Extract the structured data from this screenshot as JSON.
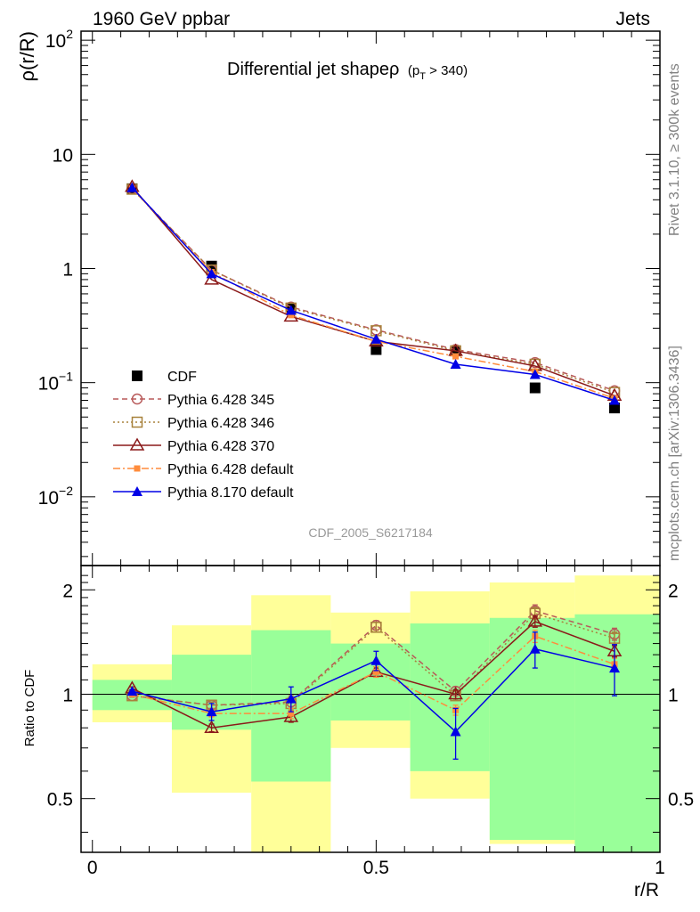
{
  "header": {
    "left_label": "1960 GeV ppbar",
    "right_label": "Jets",
    "title_main": "Differential jet shapeρ",
    "title_sub": "(p",
    "title_sub_index": "T",
    "title_sub_tail": " > 340)",
    "side_label_top": "Rivet 3.1.10, ≥ 300k events",
    "side_label_bottom": "mcplots.cern.ch [arXiv:1306.3436]",
    "watermark": "CDF_2005_S6217184"
  },
  "chart_data": [
    {
      "type": "line",
      "yscale": "log",
      "ylabel": "ρ(r/R)",
      "xlim": [
        -0.02,
        1.0
      ],
      "ylim": [
        0.0025,
        120
      ],
      "y_ticks": [
        {
          "value": 0.01,
          "base": "10",
          "exp": "−2"
        },
        {
          "value": 0.1,
          "base": "10",
          "exp": "−1"
        },
        {
          "value": 1,
          "base": "1",
          "exp": ""
        },
        {
          "value": 10,
          "base": "10",
          "exp": ""
        },
        {
          "value": 100,
          "base": "10",
          "exp": "2"
        }
      ],
      "x": [
        0.07,
        0.21,
        0.35,
        0.5,
        0.64,
        0.78,
        0.92
      ],
      "series": [
        {
          "name": "CDF",
          "color": "#000000",
          "marker": "filled-square",
          "line": "none",
          "values": [
            5.0,
            1.05,
            0.45,
            0.195,
            0.19,
            0.09,
            0.06
          ]
        },
        {
          "name": "Pythia 6.428 345",
          "color": "#b85a5a",
          "marker": "open-circle",
          "line": "dashed",
          "values": [
            5.0,
            0.97,
            0.46,
            0.29,
            0.195,
            0.15,
            0.085
          ]
        },
        {
          "name": "Pythia 6.428 346",
          "color": "#a8823c",
          "marker": "open-square",
          "line": "dotted",
          "values": [
            4.95,
            0.97,
            0.45,
            0.285,
            0.19,
            0.145,
            0.082
          ]
        },
        {
          "name": "Pythia 6.428 370",
          "color": "#8b1a1a",
          "marker": "open-triangle",
          "line": "solid",
          "values": [
            5.2,
            0.8,
            0.38,
            0.23,
            0.19,
            0.14,
            0.077
          ]
        },
        {
          "name": "Pythia 6.428 default",
          "color": "#ff8c3c",
          "marker": "filled-small-square",
          "line": "dashdot",
          "values": [
            5.0,
            0.93,
            0.39,
            0.23,
            0.17,
            0.125,
            0.073
          ]
        },
        {
          "name": "Pythia 8.170 default",
          "color": "#0000e6",
          "marker": "filled-triangle",
          "line": "solid",
          "values": [
            5.1,
            0.9,
            0.43,
            0.24,
            0.145,
            0.118,
            0.07
          ]
        }
      ]
    },
    {
      "type": "line",
      "yscale": "log",
      "ylabel": "Ratio to CDF",
      "xlabel": "r/R",
      "xlim": [
        -0.02,
        1.0
      ],
      "ylim": [
        0.35,
        2.35
      ],
      "y_ticks": [
        0.5,
        1,
        2
      ],
      "x_ticks": [
        {
          "value": 0,
          "label": "0"
        },
        {
          "value": 0.5,
          "label": "0.5"
        },
        {
          "value": 1,
          "label": "1"
        }
      ],
      "bands": {
        "edges": [
          0,
          0.14,
          0.28,
          0.42,
          0.56,
          0.7,
          0.85,
          1.0
        ],
        "yellow": [
          [
            0.83,
            1.22
          ],
          [
            0.52,
            1.58
          ],
          [
            0.33,
            1.93
          ],
          [
            0.7,
            1.72
          ],
          [
            0.5,
            1.98
          ],
          [
            0.37,
            2.1
          ],
          [
            0.33,
            2.2
          ]
        ],
        "green": [
          [
            0.9,
            1.1
          ],
          [
            0.79,
            1.3
          ],
          [
            0.56,
            1.53
          ],
          [
            0.84,
            1.4
          ],
          [
            0.6,
            1.6
          ],
          [
            0.38,
            1.66
          ],
          [
            0.33,
            1.7
          ]
        ]
      },
      "series": [
        {
          "name": "Pythia 6.428 345",
          "color": "#b85a5a",
          "marker": "open-circle",
          "line": "dashed",
          "values": [
            0.99,
            0.93,
            0.95,
            1.58,
            1.02,
            1.74,
            1.49
          ],
          "errors": [
            0.01,
            0.02,
            0.04,
            0.05,
            0.03,
            0.07,
            0.06
          ]
        },
        {
          "name": "Pythia 6.428 346",
          "color": "#a8823c",
          "marker": "open-square",
          "line": "dotted",
          "values": [
            0.99,
            0.93,
            0.94,
            1.56,
            0.99,
            1.71,
            1.45
          ],
          "errors": [
            0.01,
            0.02,
            0.04,
            0.05,
            0.03,
            0.07,
            0.06
          ]
        },
        {
          "name": "Pythia 6.428 370",
          "color": "#8b1a1a",
          "marker": "open-triangle",
          "line": "solid",
          "values": [
            1.04,
            0.8,
            0.86,
            1.16,
            1.0,
            1.62,
            1.33
          ],
          "errors": [
            0.01,
            0.02,
            0.03,
            0.04,
            0.03,
            0.06,
            0.05
          ]
        },
        {
          "name": "Pythia 6.428 default",
          "color": "#ff8c3c",
          "marker": "filled-small-square",
          "line": "dashdot",
          "values": [
            1.0,
            0.88,
            0.88,
            1.16,
            0.9,
            1.47,
            1.22
          ],
          "errors": [
            0.01,
            0.02,
            0.03,
            0.04,
            0.03,
            0.06,
            0.05
          ]
        },
        {
          "name": "Pythia 8.170 default",
          "color": "#0000e6",
          "marker": "filled-triangle",
          "line": "solid",
          "values": [
            1.02,
            0.89,
            0.97,
            1.25,
            0.78,
            1.35,
            1.19
          ],
          "errors": [
            0.01,
            0.05,
            0.08,
            0.08,
            0.13,
            0.16,
            0.2
          ]
        }
      ]
    }
  ]
}
